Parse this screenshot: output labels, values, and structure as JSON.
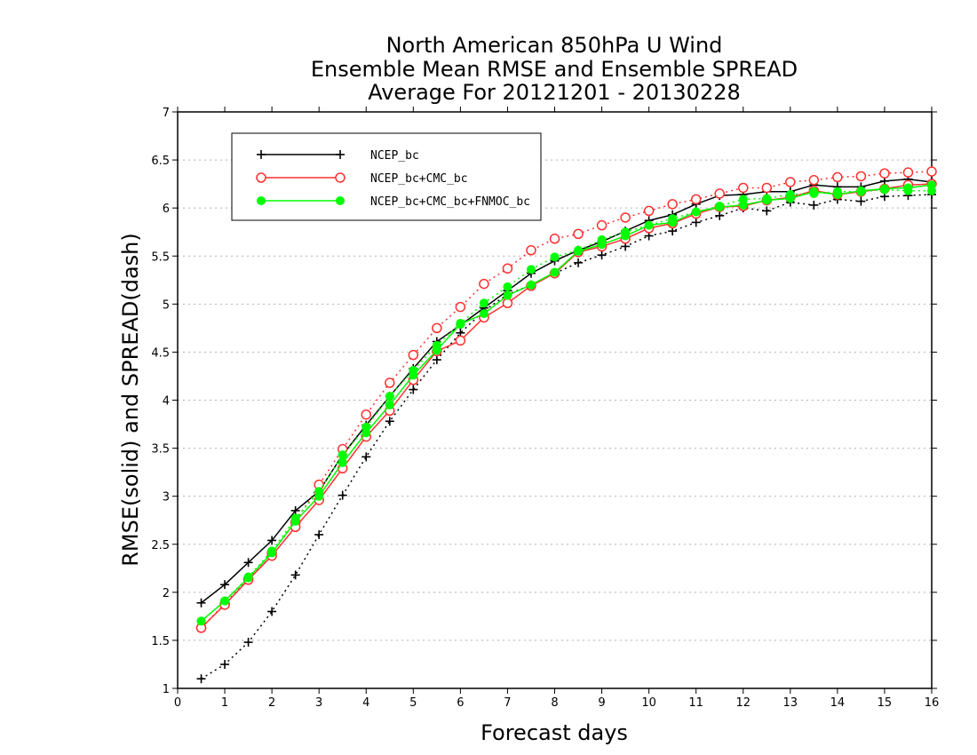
{
  "chart_data": {
    "type": "line",
    "title": [
      "North American 850hPa U Wind",
      "Ensemble Mean RMSE and Ensemble SPREAD",
      "Average For 20121201 - 20130228"
    ],
    "xlabel": "Forecast days",
    "ylabel": "RMSE(solid) and SPREAD(dash)",
    "xlim": [
      0,
      16
    ],
    "ylim": [
      1,
      7
    ],
    "xticks": [
      0,
      1,
      2,
      3,
      4,
      5,
      6,
      7,
      8,
      9,
      10,
      11,
      12,
      13,
      14,
      15,
      16
    ],
    "yticks": [
      1,
      1.5,
      2,
      2.5,
      3,
      3.5,
      4,
      4.5,
      5,
      5.5,
      6,
      6.5,
      7
    ],
    "grid": "horizontal dotted",
    "legend_placement": "top-left",
    "x": [
      0.5,
      1,
      1.5,
      2,
      2.5,
      3,
      3.5,
      4,
      4.5,
      5,
      5.5,
      6,
      6.5,
      7,
      7.5,
      8,
      8.5,
      9,
      9.5,
      10,
      10.5,
      11,
      11.5,
      12,
      12.5,
      13,
      13.5,
      14,
      14.5,
      15,
      15.5,
      16
    ],
    "series": [
      {
        "name": "NCEP_bc",
        "color": "#000000",
        "marker": "plus",
        "rmse": [
          1.89,
          2.08,
          2.31,
          2.54,
          2.85,
          3.05,
          3.43,
          3.74,
          4.04,
          4.33,
          4.61,
          4.78,
          4.96,
          5.14,
          5.32,
          5.45,
          5.56,
          5.65,
          5.76,
          5.87,
          5.93,
          6.04,
          6.13,
          6.14,
          6.17,
          6.17,
          6.24,
          6.22,
          6.22,
          6.28,
          6.3,
          6.27
        ],
        "spread": [
          1.1,
          1.25,
          1.48,
          1.8,
          2.18,
          2.6,
          3.01,
          3.41,
          3.78,
          4.11,
          4.42,
          4.7,
          4.93,
          5.1,
          5.2,
          5.32,
          5.43,
          5.51,
          5.6,
          5.71,
          5.76,
          5.85,
          5.92,
          6.0,
          5.97,
          6.06,
          6.03,
          6.09,
          6.07,
          6.12,
          6.13,
          6.14
        ]
      },
      {
        "name": "NCEP_bc+CMC_bc",
        "color": "#ff3030",
        "marker": "circle",
        "rmse": [
          1.63,
          1.87,
          2.13,
          2.38,
          2.68,
          2.96,
          3.29,
          3.62,
          3.89,
          4.21,
          4.51,
          4.62,
          4.86,
          5.01,
          5.19,
          5.32,
          5.54,
          5.6,
          5.68,
          5.79,
          5.84,
          5.94,
          6.01,
          6.02,
          6.08,
          6.11,
          6.18,
          6.14,
          6.17,
          6.2,
          6.24,
          6.25
        ],
        "spread": [
          1.63,
          1.88,
          2.14,
          2.41,
          2.73,
          3.12,
          3.49,
          3.85,
          4.18,
          4.47,
          4.75,
          4.97,
          5.21,
          5.37,
          5.56,
          5.68,
          5.73,
          5.82,
          5.9,
          5.97,
          6.04,
          6.09,
          6.15,
          6.21,
          6.21,
          6.27,
          6.29,
          6.32,
          6.33,
          6.36,
          6.37,
          6.38
        ]
      },
      {
        "name": "NCEP_bc+CMC_bc+FNMOC_bc",
        "color": "#00ff00",
        "marker": "dot",
        "rmse": [
          1.7,
          1.91,
          2.15,
          2.41,
          2.74,
          3.0,
          3.35,
          3.66,
          3.95,
          4.26,
          4.52,
          4.79,
          4.9,
          5.09,
          5.2,
          5.33,
          5.55,
          5.62,
          5.71,
          5.82,
          5.85,
          5.96,
          6.01,
          6.03,
          6.08,
          6.1,
          6.17,
          6.14,
          6.18,
          6.2,
          6.21,
          6.24
        ],
        "spread": [
          1.7,
          1.91,
          2.16,
          2.43,
          2.77,
          3.05,
          3.43,
          3.72,
          4.04,
          4.31,
          4.57,
          4.8,
          5.01,
          5.18,
          5.36,
          5.49,
          5.56,
          5.67,
          5.75,
          5.82,
          5.89,
          5.96,
          6.02,
          6.09,
          6.1,
          6.14,
          6.15,
          6.17,
          6.17,
          6.19,
          6.18,
          6.18
        ]
      }
    ]
  }
}
